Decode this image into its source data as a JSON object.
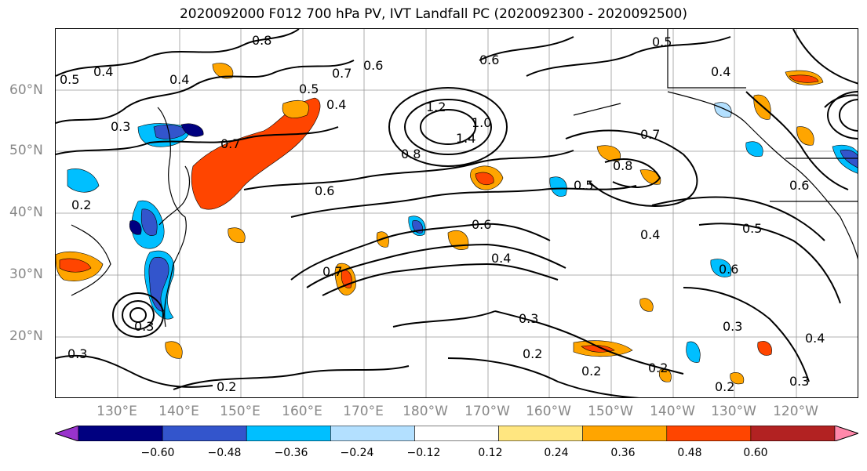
{
  "title": "2020092000 F012 700 hPa PV, IVT Landfall PC (2020092300 - 2020092500)",
  "lat_labels": [
    "60°N",
    "50°N",
    "40°N",
    "30°N",
    "20°N"
  ],
  "lon_labels": [
    "130°E",
    "140°E",
    "150°E",
    "160°E",
    "170°E",
    "180°W",
    "170°W",
    "160°W",
    "150°W",
    "140°W",
    "130°W",
    "120°W"
  ],
  "colorbar": {
    "colors": [
      "#9933cc",
      "#000080",
      "#3355cc",
      "#00bfff",
      "#b3e0ff",
      "#ffffff",
      "#ffe680",
      "#ffa500",
      "#ff4500",
      "#b22222",
      "#ff88aa"
    ],
    "tick_labels": [
      "−0.60",
      "−0.48",
      "−0.36",
      "−0.24",
      "−0.12",
      "0.12",
      "0.24",
      "0.36",
      "0.48",
      "0.60"
    ]
  },
  "contour_labels": [
    "0.4",
    "0.8",
    "0.5",
    "0.7",
    "0.6",
    "0.5",
    "0.4",
    "1.2",
    "1.0",
    "1.4",
    "0.8",
    "0.4",
    "0.3",
    "0.7",
    "0.6",
    "0.6",
    "0.4",
    "0.7",
    "0.8",
    "0.5",
    "0.7",
    "0.4",
    "0.5",
    "0.6",
    "0.3",
    "0.2",
    "0.2",
    "0.2",
    "0.2",
    "0.3",
    "0.3",
    "0.4",
    "0.3",
    "0.2",
    "0.2",
    "0.3",
    "0.6",
    "0.5",
    "0.4",
    "0.6"
  ]
}
